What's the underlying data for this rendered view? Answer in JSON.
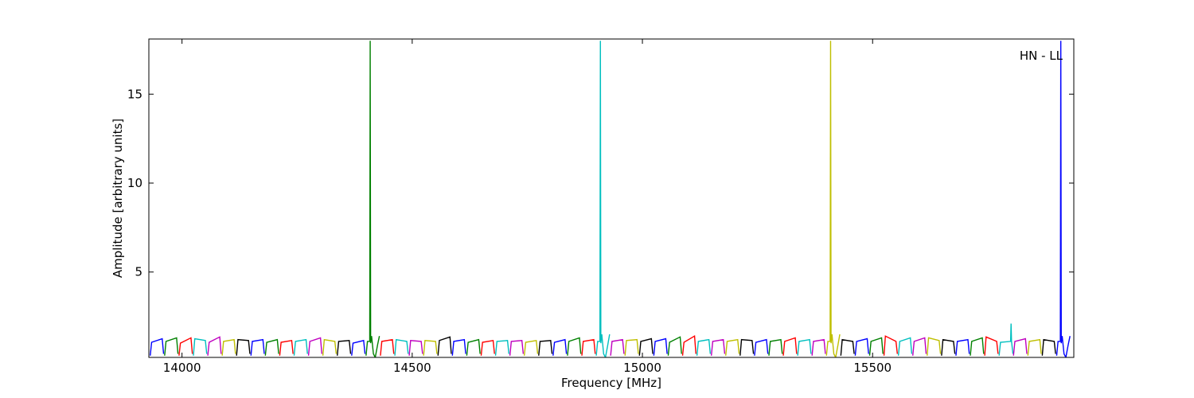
{
  "chart_data": {
    "type": "line",
    "xlabel": "Frequency [MHz]",
    "ylabel": "Amplitude [arbitrary units]",
    "annotation": "HN - LL",
    "xlim": [
      13928,
      15937
    ],
    "xticks": [
      14000,
      14500,
      15000,
      15500
    ],
    "ylim": [
      0.2,
      18.1
    ],
    "yticks": [
      5,
      10,
      15
    ],
    "series": [
      {
        "color": "#0000ff",
        "x": [
          13931,
          13934,
          13957,
          13960,
          null,
          14149.75,
          14152.75,
          14175.75,
          14178.75,
          null,
          14368.5,
          14371.5,
          14394.5,
          14397.5,
          null,
          14587.25,
          14590.25,
          14613.25,
          14616.25,
          null,
          14806,
          14809,
          14832,
          14835,
          null,
          15024.75,
          15027.75,
          15050.75,
          15053.75,
          null,
          15243.5,
          15246.5,
          15269.5,
          15272.5,
          null,
          15462.25,
          15465.25,
          15488.25,
          15491.25,
          null,
          15681,
          15684,
          15707,
          15710,
          null,
          15899.75,
          15902.75,
          15907.75,
          15908.75,
          15909.75,
          15911.75,
          15915.75,
          15919.75,
          15924.75,
          15928.75
        ],
        "values": [
          0.3,
          1.05,
          1.25,
          0.4,
          null,
          0.3,
          1.1,
          1.2,
          0.4,
          null,
          0.3,
          1.0,
          1.15,
          0.4,
          null,
          0.3,
          1.1,
          1.2,
          0.4,
          null,
          0.3,
          1.05,
          1.2,
          0.4,
          null,
          0.3,
          1.1,
          1.25,
          0.4,
          null,
          0.3,
          1.05,
          1.2,
          0.4,
          null,
          0.3,
          1.1,
          1.25,
          0.4,
          null,
          0.3,
          1.1,
          1.2,
          0.4,
          null,
          0.3,
          1.1,
          1.1,
          18,
          1.0,
          1.4,
          0.4,
          0.2,
          0.9,
          1.4
        ]
      },
      {
        "color": "#008000",
        "x": [
          13962.25,
          13965.25,
          13988.25,
          13991.25,
          null,
          14181,
          14184,
          14207,
          14210,
          null,
          14399.75,
          14402.75,
          14407.75,
          14408.75,
          14409.75,
          14411.75,
          14415.75,
          14419.75,
          14424.75,
          14428.75,
          null,
          14618.5,
          14621.5,
          14644.5,
          14647.5,
          null,
          14837.25,
          14840.25,
          14863.25,
          14866.25,
          null,
          15056,
          15059,
          15082,
          15085,
          null,
          15274.75,
          15277.75,
          15300.75,
          15303.75,
          null,
          15493.5,
          15496.5,
          15519.5,
          15522.5,
          null,
          15712.25,
          15715.25,
          15738.25,
          15741.25
        ],
        "values": [
          0.3,
          1.1,
          1.3,
          0.4,
          null,
          0.3,
          1.05,
          1.2,
          0.4,
          null,
          0.3,
          1.1,
          1.1,
          18,
          1.0,
          1.4,
          0.4,
          0.2,
          0.9,
          1.4,
          null,
          0.3,
          1.05,
          1.2,
          0.4,
          null,
          0.3,
          1.1,
          1.3,
          0.4,
          null,
          0.3,
          1.05,
          1.35,
          0.4,
          null,
          0.3,
          1.1,
          1.2,
          0.4,
          null,
          0.3,
          1.1,
          1.3,
          0.4,
          null,
          0.3,
          1.1,
          1.3,
          0.4
        ]
      },
      {
        "color": "#ff0000",
        "x": [
          13993.5,
          13996.5,
          14019.5,
          14022.5,
          null,
          14212.25,
          14215.25,
          14238.25,
          14241.25,
          null,
          14431,
          14434,
          14457,
          14460,
          null,
          14649.75,
          14652.75,
          14675.75,
          14678.75,
          null,
          14868.5,
          14871.5,
          14894.5,
          14897.5,
          null,
          15087.25,
          15090.25,
          15113.25,
          15116.25,
          null,
          15306,
          15309,
          15332,
          15335,
          null,
          15524.75,
          15527.75,
          15550.75,
          15553.75,
          null,
          15743.5,
          15746.5,
          15769.5,
          15772.5
        ],
        "values": [
          0.3,
          1.0,
          1.3,
          0.4,
          null,
          0.3,
          1.05,
          1.15,
          0.4,
          null,
          0.3,
          1.1,
          1.2,
          0.4,
          null,
          0.3,
          1.05,
          1.15,
          0.4,
          null,
          0.3,
          1.1,
          1.2,
          0.4,
          null,
          0.3,
          1.05,
          1.4,
          0.4,
          null,
          0.3,
          1.1,
          1.3,
          0.4,
          null,
          0.3,
          1.4,
          1.1,
          0.4,
          null,
          0.3,
          1.35,
          1.1,
          0.4
        ]
      },
      {
        "color": "#00bfbf",
        "x": [
          14024.75,
          14027.75,
          14050.75,
          14053.75,
          null,
          14243.5,
          14246.5,
          14269.5,
          14272.5,
          null,
          14462.25,
          14465.25,
          14488.25,
          14491.25,
          null,
          14681,
          14684,
          14707,
          14710,
          null,
          14899.75,
          14902.75,
          14907.75,
          14908.75,
          14909.75,
          14911.75,
          14915.75,
          14919.75,
          14924.75,
          14928.75,
          null,
          15118.5,
          15121.5,
          15144.5,
          15147.5,
          null,
          15337.25,
          15340.25,
          15363.25,
          15366.25,
          null,
          15556,
          15559,
          15582,
          15585,
          null,
          15774.75,
          15777.75,
          15799.75,
          15800.75,
          15801.75,
          15804.75
        ],
        "values": [
          0.3,
          1.25,
          1.15,
          0.4,
          null,
          0.3,
          1.1,
          1.2,
          0.4,
          null,
          0.3,
          1.2,
          1.1,
          0.4,
          null,
          0.3,
          1.1,
          1.15,
          0.4,
          null,
          0.3,
          1.1,
          1.1,
          18,
          1.0,
          1.5,
          0.4,
          0.2,
          0.9,
          1.5,
          null,
          0.3,
          1.1,
          1.2,
          0.4,
          null,
          0.3,
          1.1,
          1.2,
          0.4,
          null,
          0.3,
          1.1,
          1.3,
          0.4,
          null,
          0.3,
          1.05,
          1.1,
          2.1,
          1.1,
          0.4
        ]
      },
      {
        "color": "#bf00bf",
        "x": [
          14056,
          14059,
          14082,
          14085,
          null,
          14274.75,
          14277.75,
          14300.75,
          14303.75,
          null,
          14493.5,
          14496.5,
          14519.5,
          14522.5,
          null,
          14712.25,
          14715.25,
          14738.25,
          14741.25,
          null,
          14931,
          14934,
          14957,
          14960,
          null,
          15149.75,
          15152.75,
          15175.75,
          15178.75,
          null,
          15368.5,
          15371.5,
          15394.5,
          15397.5,
          null,
          15587.25,
          15590.25,
          15613.25,
          15616.25,
          null,
          15806,
          15809,
          15832,
          15835
        ],
        "values": [
          0.3,
          1.05,
          1.35,
          0.4,
          null,
          0.3,
          1.1,
          1.3,
          0.4,
          null,
          0.3,
          1.15,
          1.1,
          0.4,
          null,
          0.3,
          1.1,
          1.15,
          0.4,
          null,
          0.3,
          1.1,
          1.2,
          0.4,
          null,
          0.3,
          1.1,
          1.2,
          0.4,
          null,
          0.3,
          1.1,
          1.2,
          0.4,
          null,
          0.3,
          1.1,
          1.3,
          0.4,
          null,
          0.3,
          1.1,
          1.25,
          0.4
        ]
      },
      {
        "color": "#bfbf00",
        "x": [
          14087.25,
          14090.25,
          14113.25,
          14116.25,
          null,
          14306,
          14309,
          14332,
          14335,
          null,
          14524.75,
          14527.75,
          14550.75,
          14553.75,
          null,
          14743.5,
          14746.5,
          14769.5,
          14772.5,
          null,
          14962.25,
          14965.25,
          14988.25,
          14991.25,
          null,
          15181,
          15184,
          15207,
          15210,
          null,
          15399.75,
          15402.75,
          15407.75,
          15408.75,
          15409.75,
          15411.75,
          15415.75,
          15419.75,
          15424.75,
          15428.75,
          null,
          15618.5,
          15621.5,
          15644.5,
          15647.5,
          null,
          15837.25,
          15840.25,
          15863.25,
          15866.25
        ],
        "values": [
          0.3,
          1.1,
          1.2,
          0.4,
          null,
          0.3,
          1.2,
          1.1,
          0.4,
          null,
          0.3,
          1.15,
          1.1,
          0.4,
          null,
          0.3,
          1.05,
          1.15,
          0.4,
          null,
          0.3,
          1.15,
          1.2,
          0.4,
          null,
          0.3,
          1.1,
          1.2,
          0.4,
          null,
          0.3,
          1.1,
          1.1,
          18,
          1.0,
          1.5,
          0.4,
          0.2,
          0.9,
          1.5,
          null,
          0.3,
          1.3,
          1.15,
          0.4,
          null,
          0.3,
          1.1,
          1.2,
          0.4
        ]
      },
      {
        "color": "#000000",
        "x": [
          14118.5,
          14121.5,
          14144.5,
          14147.5,
          null,
          14337.25,
          14340.25,
          14363.25,
          14366.25,
          null,
          14556,
          14559,
          14582,
          14585,
          null,
          14774.75,
          14777.75,
          14800.75,
          14803.75,
          null,
          14993.5,
          14996.5,
          15019.5,
          15022.5,
          null,
          15212.25,
          15215.25,
          15238.25,
          15241.25,
          null,
          15431,
          15434,
          15457,
          15460,
          null,
          15649.75,
          15652.75,
          15675.75,
          15678.75,
          null,
          15868.5,
          15871.5,
          15894.5,
          15897.5
        ],
        "values": [
          0.3,
          1.2,
          1.15,
          0.4,
          null,
          0.3,
          1.1,
          1.15,
          0.4,
          null,
          0.3,
          1.15,
          1.35,
          0.4,
          null,
          0.3,
          1.1,
          1.15,
          0.4,
          null,
          0.3,
          1.1,
          1.25,
          0.4,
          null,
          0.3,
          1.2,
          1.15,
          0.4,
          null,
          0.3,
          1.2,
          1.1,
          0.4,
          null,
          0.3,
          1.2,
          1.1,
          0.4,
          null,
          0.3,
          1.2,
          1.1,
          0.4
        ]
      }
    ]
  }
}
